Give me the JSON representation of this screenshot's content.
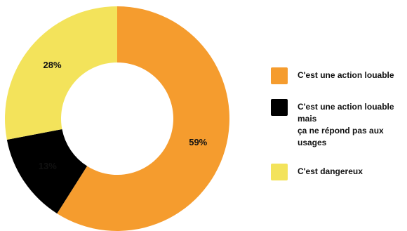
{
  "chart_data": {
    "type": "pie",
    "donut": true,
    "categories": [
      "C'est une action louable",
      "C'est une action louable mais\nça ne répond pas aux usages",
      "C'est dangereux"
    ],
    "values": [
      59,
      13,
      28
    ],
    "labels": [
      "59%",
      "13%",
      "28%"
    ],
    "colors": [
      "#F59C2E",
      "#000000",
      "#F3E35B"
    ],
    "title": "",
    "legend_position": "right"
  }
}
